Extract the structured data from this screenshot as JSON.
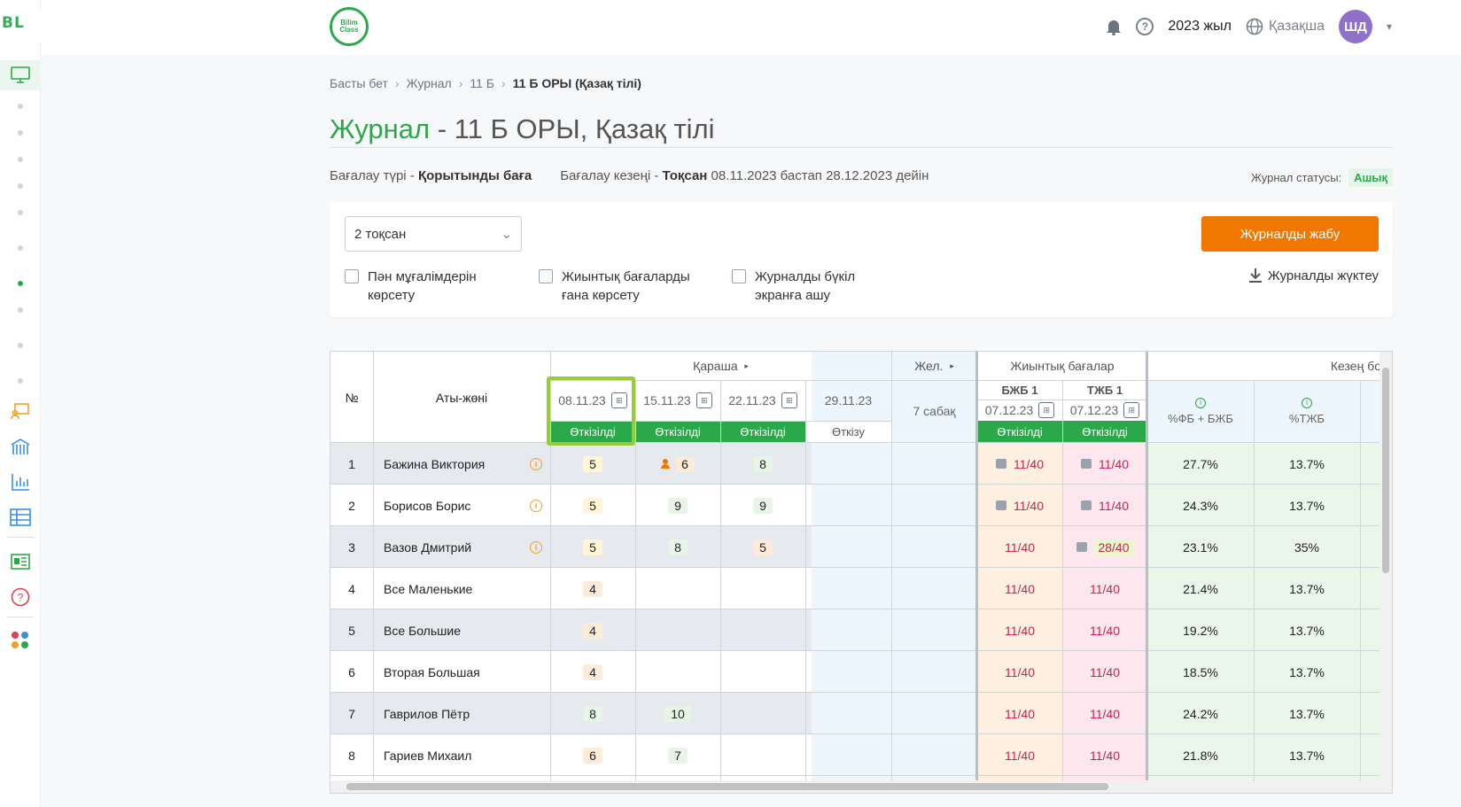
{
  "sidebar": {
    "logo": "BL",
    "expand_icon": "chevron-right-icon"
  },
  "header": {
    "brand": "Bilim Class",
    "year": "2023 жыл",
    "language": "Қазақша",
    "avatar_initials": "ШД"
  },
  "breadcrumb": [
    "Басты бет",
    "Журнал",
    "11 Б",
    "11 Б ОРЫ (Қазақ тілі)"
  ],
  "page": {
    "title_main": "Журнал",
    "title_rest": " - 11 Б ОРЫ, Қазақ тілі"
  },
  "meta": {
    "assessment_type_label": "Бағалау түрі -",
    "assessment_type_value": "Қорытынды баға",
    "period_label": "Бағалау кезеңі -",
    "period_value": "Тоқсан",
    "period_range": "08.11.2023 бастап 28.12.2023 дейін",
    "status_label": "Журнал статусы:",
    "status_value": "Ашық"
  },
  "filters": {
    "quarter_select": "2 тоқсан",
    "cb_teachers": [
      "Пән мұғалімдерін",
      "көрсету"
    ],
    "cb_summative": [
      "Жиынтық бағаларды",
      "ғана көрсету"
    ],
    "cb_fullscreen": [
      "Журналды бүкіл",
      "экранға ашу"
    ],
    "close_button": "Журналды жабу",
    "download": "Журналды жүктеу"
  },
  "table": {
    "col_no": "№",
    "col_name": "Аты-жөні",
    "month_label": "Қараша",
    "dec_label": "Жел.",
    "summ_label": "Жиынтық бағалар",
    "period_label": "Кезең бо",
    "dates": [
      "08.11.23",
      "15.11.23",
      "22.11.23",
      "29.11.23"
    ],
    "date_status": [
      "Өткізілді",
      "Өткізілді",
      "Өткізілді",
      "Өткізу"
    ],
    "lessons": "7 сабақ",
    "bjb": "БЖБ 1",
    "bjb_date": "07.12.23",
    "bjb_status": "Өткізілді",
    "tjb": "ТЖБ 1",
    "tjb_date": "07.12.23",
    "tjb_status": "Өткізілді",
    "pct_fb": "%ФБ + БЖБ",
    "pct_tjb": "%ТЖБ",
    "rows": [
      {
        "no": "1",
        "name": "Бажина Виктория",
        "g": [
          "5",
          "6",
          "8"
        ],
        "bjb": "11/40",
        "tjb": "11/40",
        "p1": "27.7%",
        "p2": "13.7%"
      },
      {
        "no": "2",
        "name": "Борисов Борис",
        "g": [
          "5",
          "9",
          "9"
        ],
        "bjb": "11/40",
        "tjb": "11/40",
        "p1": "24.3%",
        "p2": "13.7%"
      },
      {
        "no": "3",
        "name": "Вазов Дмитрий",
        "g": [
          "5",
          "8",
          "5"
        ],
        "bjb": "11/40",
        "tjb": "28/40",
        "p1": "23.1%",
        "p2": "35%"
      },
      {
        "no": "4",
        "name": "Все Маленькие",
        "g": [
          "4",
          "",
          ""
        ],
        "bjb": "11/40",
        "tjb": "11/40",
        "p1": "21.4%",
        "p2": "13.7%"
      },
      {
        "no": "5",
        "name": "Все Большие",
        "g": [
          "4",
          "",
          ""
        ],
        "bjb": "11/40",
        "tjb": "11/40",
        "p1": "19.2%",
        "p2": "13.7%"
      },
      {
        "no": "6",
        "name": "Вторая Большая",
        "g": [
          "4",
          "",
          ""
        ],
        "bjb": "11/40",
        "tjb": "11/40",
        "p1": "18.5%",
        "p2": "13.7%"
      },
      {
        "no": "7",
        "name": "Гаврилов Пётр",
        "g": [
          "8",
          "10",
          ""
        ],
        "bjb": "11/40",
        "tjb": "11/40",
        "p1": "24.2%",
        "p2": "13.7%"
      },
      {
        "no": "8",
        "name": "Гариев Михаил",
        "g": [
          "6",
          "7",
          ""
        ],
        "bjb": "11/40",
        "tjb": "11/40",
        "p1": "21.8%",
        "p2": "13.7%"
      }
    ]
  }
}
